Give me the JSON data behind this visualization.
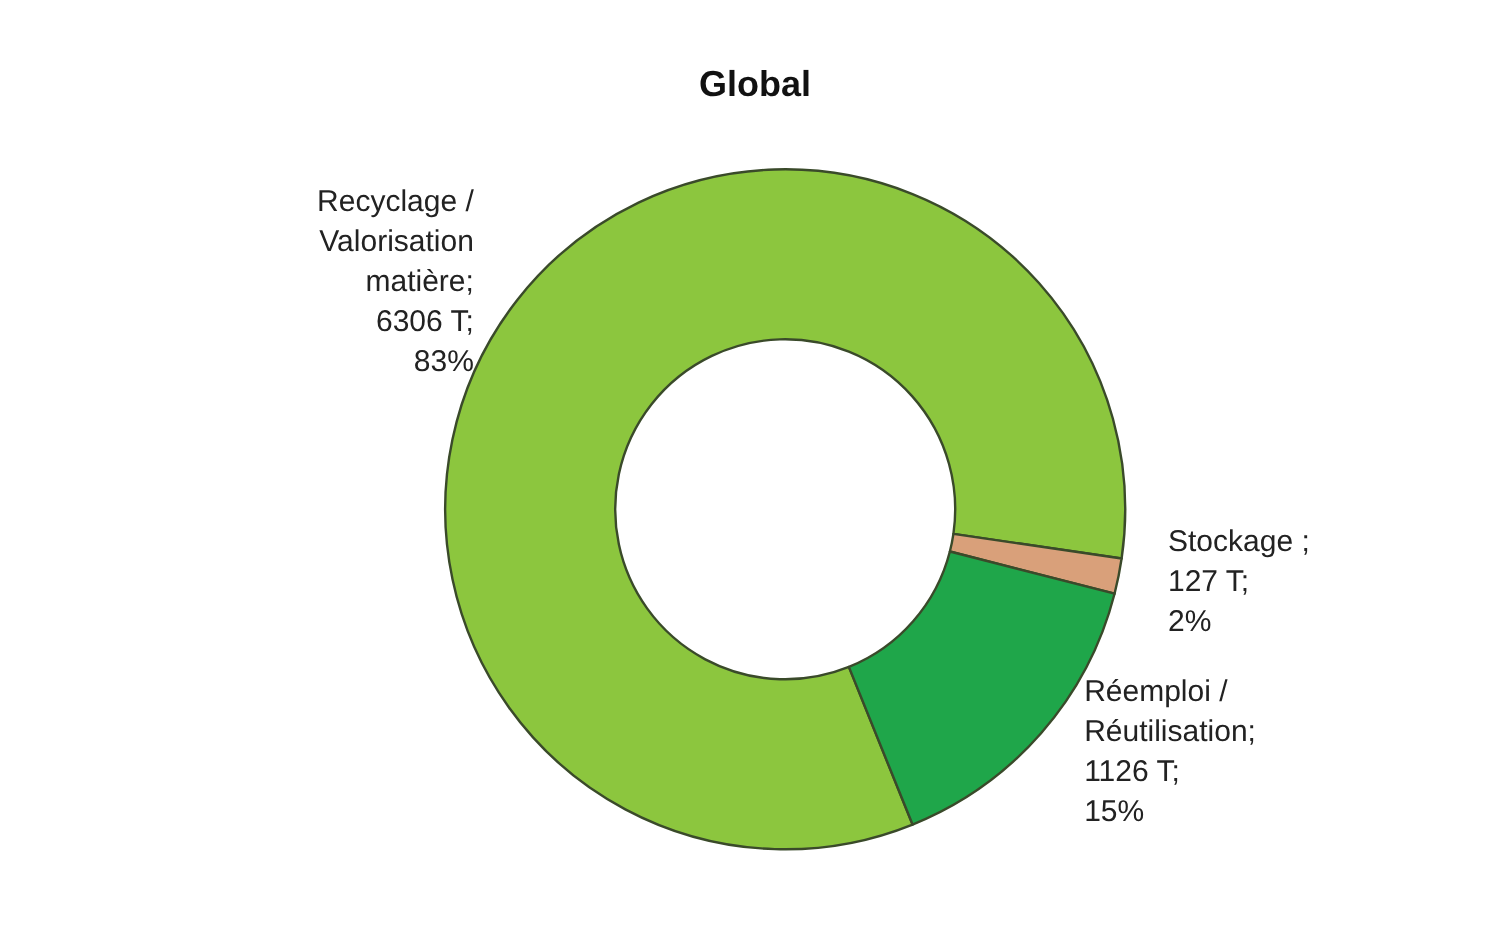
{
  "chart_data": {
    "type": "donut",
    "title": "Global",
    "categories": [
      "Recyclage /\nValorisation\nmatière",
      "Stockage",
      "Réemploi /\nRéutilisation"
    ],
    "values": [
      6306,
      127,
      1126
    ],
    "value_labels": [
      ";\n6306 T;\n83%",
      " ;\n127 T;\n2%",
      ";\n1126 T;\n15%"
    ],
    "colors": [
      "#8cc63e",
      "#d9a07a",
      "#1fa64a"
    ],
    "legend": false
  }
}
